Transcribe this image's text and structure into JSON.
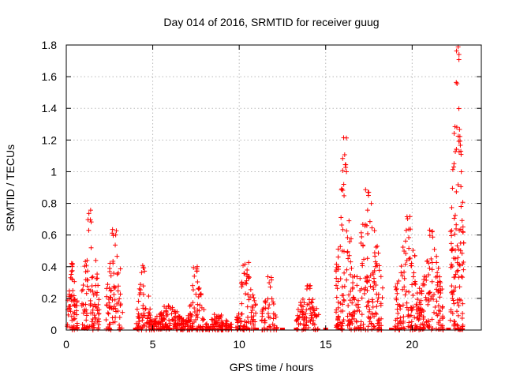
{
  "chart_data": {
    "type": "scatter",
    "title": "Day 014 of 2016, SRMTID for receiver guug",
    "xlabel": "GPS time / hours",
    "ylabel": "SRMTID / TECUs",
    "xlim": [
      0,
      24
    ],
    "ylim": [
      0,
      1.8
    ],
    "xticks": [
      "0",
      "5",
      "10",
      "15",
      "20"
    ],
    "yticks": [
      "0",
      "0.2",
      "0.4",
      "0.6",
      "0.8",
      "1",
      "1.2",
      "1.4",
      "1.6",
      "1.8"
    ],
    "grid": true,
    "marker": "+",
    "colors": {
      "series": "#ff0000",
      "grid": "#b8b8b8",
      "axis": "#000000"
    },
    "clusters": [
      {
        "x_range": [
          0.05,
          0.7
        ],
        "peak": 0.45,
        "n": 60
      },
      {
        "x_range": [
          0.9,
          1.9
        ],
        "peak": 0.76,
        "n": 90
      },
      {
        "x_range": [
          2.3,
          3.3
        ],
        "peak": 0.69,
        "n": 70
      },
      {
        "x_range": [
          4.0,
          4.9
        ],
        "peak": 0.41,
        "n": 60
      },
      {
        "x_range": [
          4.9,
          7.0
        ],
        "peak": 0.16,
        "n": 140
      },
      {
        "x_range": [
          7.0,
          8.0
        ],
        "peak": 0.42,
        "n": 70
      },
      {
        "x_range": [
          8.0,
          9.6
        ],
        "peak": 0.1,
        "n": 80
      },
      {
        "x_range": [
          9.8,
          11.0
        ],
        "peak": 0.44,
        "n": 80
      },
      {
        "x_range": [
          11.3,
          12.2
        ],
        "peak": 0.34,
        "n": 50
      },
      {
        "x_range": [
          13.3,
          14.6
        ],
        "peak": 0.29,
        "n": 80
      },
      {
        "x_range": [
          15.6,
          16.6
        ],
        "peak": 1.22,
        "n": 110
      },
      {
        "x_range": [
          16.6,
          18.3
        ],
        "peak": 0.91,
        "n": 140
      },
      {
        "x_range": [
          19.0,
          20.5
        ],
        "peak": 0.74,
        "n": 130
      },
      {
        "x_range": [
          20.5,
          21.8
        ],
        "peak": 0.64,
        "n": 110
      },
      {
        "x_range": [
          22.2,
          23.0
        ],
        "peak": 1.8,
        "n": 120
      }
    ],
    "zero_markers": [
      0.5,
      1.0,
      2.5,
      4.0,
      5.0,
      6.0,
      7.5,
      10.0,
      10.5,
      11.0,
      12.5,
      13.3,
      15.0,
      15.8,
      18.8,
      19.3,
      22.1,
      22.6
    ]
  }
}
